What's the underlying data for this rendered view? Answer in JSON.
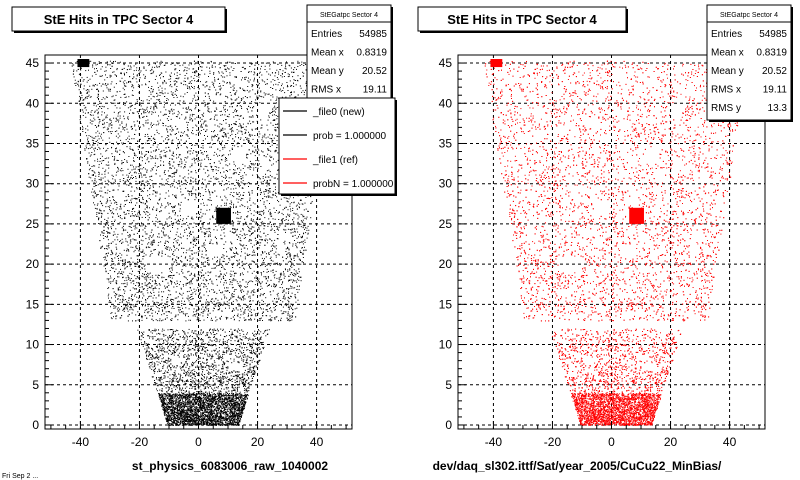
{
  "chart_data": [
    {
      "type": "scatter",
      "title": "StE Hits in TPC Sector 4",
      "xlabel": "st_physics_6083006_raw_1040002",
      "ylabel": "",
      "xlim": [
        -52,
        52
      ],
      "ylim": [
        -0.5,
        46
      ],
      "x_ticks": [
        -40,
        -20,
        0,
        20,
        40
      ],
      "y_ticks": [
        0,
        5,
        10,
        15,
        20,
        25,
        30,
        35,
        40,
        45
      ],
      "grid": true,
      "marker_color": "#000000",
      "stats_box": {
        "name": "StEGatpc Sector 4",
        "rows": [
          {
            "label": "Entries",
            "value": "54985"
          },
          {
            "label": "Mean x",
            "value": "0.8319"
          },
          {
            "label": "Mean y",
            "value": "20.52"
          },
          {
            "label": "RMS x",
            "value": "19.11"
          }
        ]
      },
      "legend": {
        "placement": "top-right",
        "entries": [
          {
            "label": "_file0 (new)",
            "color": "#000000"
          },
          {
            "label": "prob = 1.000000",
            "color": "#000000"
          },
          {
            "label": "_file1 (ref)",
            "color": "#ff0000"
          },
          {
            "label": "probN = 1.000000",
            "color": "#ff0000"
          }
        ]
      }
    },
    {
      "type": "scatter",
      "title": "StE Hits in TPC Sector 4",
      "xlabel": "dev/daq_sl302.ittf/Sat/year_2005/CuCu22_MinBias/",
      "ylabel": "",
      "xlim": [
        -52,
        52
      ],
      "ylim": [
        -0.5,
        46
      ],
      "x_ticks": [
        -40,
        -20,
        0,
        20,
        40
      ],
      "y_ticks": [
        0,
        5,
        10,
        15,
        20,
        25,
        30,
        35,
        40,
        45
      ],
      "grid": true,
      "marker_color": "#ff0000",
      "stats_box": {
        "name": "StEGatpc Sector 4",
        "rows": [
          {
            "label": "Entries",
            "value": "54985"
          },
          {
            "label": "Mean x",
            "value": "0.8319"
          },
          {
            "label": "Mean y",
            "value": "20.52"
          },
          {
            "label": "RMS x",
            "value": "19.11"
          },
          {
            "label": "RMS y",
            "value": "13.3"
          }
        ]
      }
    }
  ],
  "footer_text": "Fri Sep 2 ..."
}
